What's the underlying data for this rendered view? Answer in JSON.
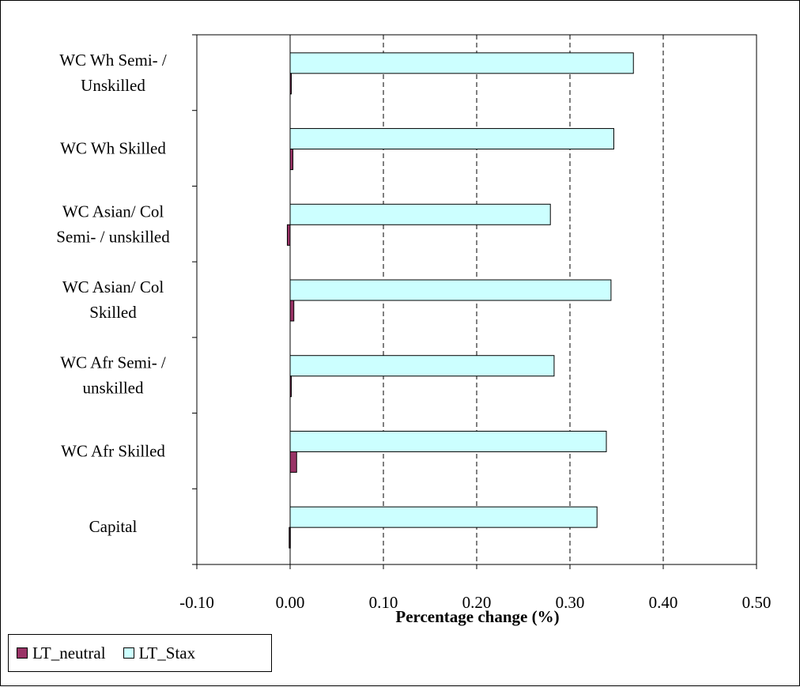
{
  "chart_data": {
    "type": "bar",
    "orientation": "horizontal",
    "categories": [
      [
        "WC Wh Semi- /",
        "Unskilled"
      ],
      [
        "WC Wh Skilled"
      ],
      [
        "WC Asian/ Col",
        "Semi- / unskilled"
      ],
      [
        "WC Asian/ Col",
        "Skilled"
      ],
      [
        "WC Afr Semi- /",
        "unskilled"
      ],
      [
        "WC Afr Skilled"
      ],
      [
        "Capital"
      ]
    ],
    "series": [
      {
        "name": "LT_neutral",
        "color": "#993366",
        "values": [
          0.0,
          0.003,
          -0.003,
          0.004,
          0.001,
          0.007,
          -0.001
        ]
      },
      {
        "name": "LT_Stax",
        "color": "#ccffff",
        "values": [
          0.368,
          0.347,
          0.279,
          0.344,
          0.283,
          0.339,
          0.329
        ]
      }
    ],
    "xlim": [
      -0.1,
      0.5
    ],
    "ticks": [
      "-0.10",
      "0.00",
      "0.10",
      "0.20",
      "0.30",
      "0.40",
      "0.50"
    ],
    "tick_values": [
      -0.1,
      0.0,
      0.1,
      0.2,
      0.3,
      0.4,
      0.5
    ],
    "xlabel": "Percentage change (%)",
    "grid": "vertical dashed",
    "legend_position": "bottom-left"
  }
}
